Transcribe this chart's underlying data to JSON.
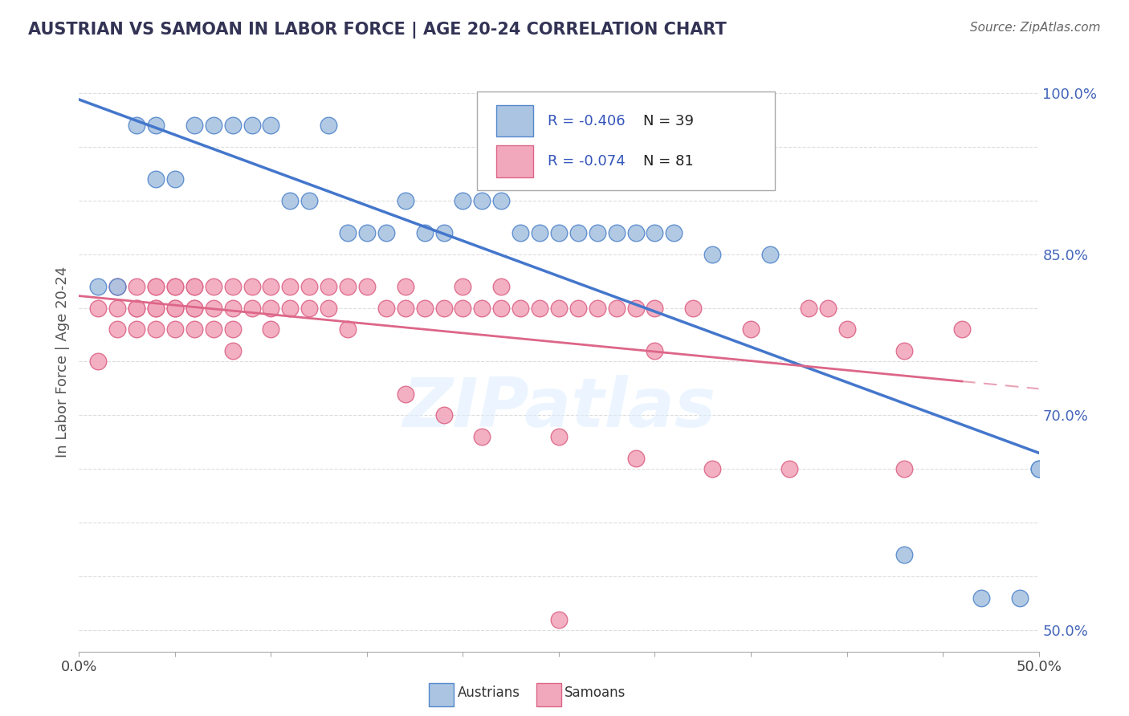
{
  "title": "AUSTRIAN VS SAMOAN IN LABOR FORCE | AGE 20-24 CORRELATION CHART",
  "source": "Source: ZipAtlas.com",
  "ylabel": "In Labor Force | Age 20-24",
  "xlim": [
    0.0,
    0.5
  ],
  "ylim": [
    0.48,
    1.02
  ],
  "blue_color": "#aac4e2",
  "pink_color": "#f2a8bc",
  "blue_edge_color": "#5588cc",
  "pink_edge_color": "#dd6688",
  "blue_line_color": "#4477cc",
  "pink_line_color": "#dd6688",
  "legend_R_color": "#3355bb",
  "legend_N_color": "#222222",
  "R_blue": "-0.406",
  "N_blue": "39",
  "R_pink": "-0.074",
  "N_pink": "81",
  "watermark": "ZIPatlas",
  "blue_points_x": [
    0.01,
    0.02,
    0.03,
    0.04,
    0.04,
    0.05,
    0.06,
    0.07,
    0.08,
    0.09,
    0.1,
    0.11,
    0.12,
    0.13,
    0.14,
    0.15,
    0.16,
    0.17,
    0.18,
    0.19,
    0.2,
    0.21,
    0.22,
    0.23,
    0.24,
    0.25,
    0.26,
    0.27,
    0.28,
    0.29,
    0.3,
    0.31,
    0.33,
    0.36,
    0.43,
    0.47,
    0.49,
    0.5,
    0.5
  ],
  "blue_points_y": [
    0.82,
    0.82,
    0.97,
    0.97,
    0.92,
    0.92,
    0.97,
    0.97,
    0.97,
    0.97,
    0.97,
    0.9,
    0.9,
    0.97,
    0.87,
    0.87,
    0.87,
    0.9,
    0.87,
    0.87,
    0.9,
    0.9,
    0.9,
    0.87,
    0.87,
    0.87,
    0.87,
    0.87,
    0.87,
    0.87,
    0.87,
    0.87,
    0.85,
    0.85,
    0.57,
    0.53,
    0.53,
    0.65,
    0.65
  ],
  "pink_points_x": [
    0.01,
    0.01,
    0.02,
    0.02,
    0.02,
    0.02,
    0.03,
    0.03,
    0.03,
    0.03,
    0.04,
    0.04,
    0.04,
    0.04,
    0.04,
    0.05,
    0.05,
    0.05,
    0.05,
    0.05,
    0.06,
    0.06,
    0.06,
    0.06,
    0.06,
    0.07,
    0.07,
    0.07,
    0.08,
    0.08,
    0.08,
    0.08,
    0.09,
    0.09,
    0.1,
    0.1,
    0.1,
    0.11,
    0.11,
    0.12,
    0.12,
    0.13,
    0.13,
    0.14,
    0.14,
    0.15,
    0.16,
    0.17,
    0.17,
    0.18,
    0.19,
    0.2,
    0.2,
    0.21,
    0.22,
    0.22,
    0.23,
    0.24,
    0.25,
    0.26,
    0.27,
    0.28,
    0.29,
    0.3,
    0.3,
    0.32,
    0.35,
    0.38,
    0.39,
    0.4,
    0.43,
    0.46,
    0.17,
    0.19,
    0.21,
    0.25,
    0.29,
    0.33,
    0.37,
    0.43,
    0.25
  ],
  "pink_points_y": [
    0.8,
    0.75,
    0.82,
    0.8,
    0.78,
    0.82,
    0.8,
    0.82,
    0.78,
    0.8,
    0.82,
    0.8,
    0.78,
    0.82,
    0.8,
    0.82,
    0.8,
    0.78,
    0.82,
    0.8,
    0.82,
    0.8,
    0.78,
    0.82,
    0.8,
    0.82,
    0.8,
    0.78,
    0.82,
    0.8,
    0.78,
    0.76,
    0.82,
    0.8,
    0.82,
    0.8,
    0.78,
    0.82,
    0.8,
    0.82,
    0.8,
    0.82,
    0.8,
    0.82,
    0.78,
    0.82,
    0.8,
    0.82,
    0.8,
    0.8,
    0.8,
    0.82,
    0.8,
    0.8,
    0.82,
    0.8,
    0.8,
    0.8,
    0.8,
    0.8,
    0.8,
    0.8,
    0.8,
    0.8,
    0.76,
    0.8,
    0.78,
    0.8,
    0.8,
    0.78,
    0.76,
    0.78,
    0.72,
    0.7,
    0.68,
    0.68,
    0.66,
    0.65,
    0.65,
    0.65,
    0.51
  ],
  "background_color": "#ffffff",
  "grid_color": "#dddddd",
  "grid_style": "--"
}
